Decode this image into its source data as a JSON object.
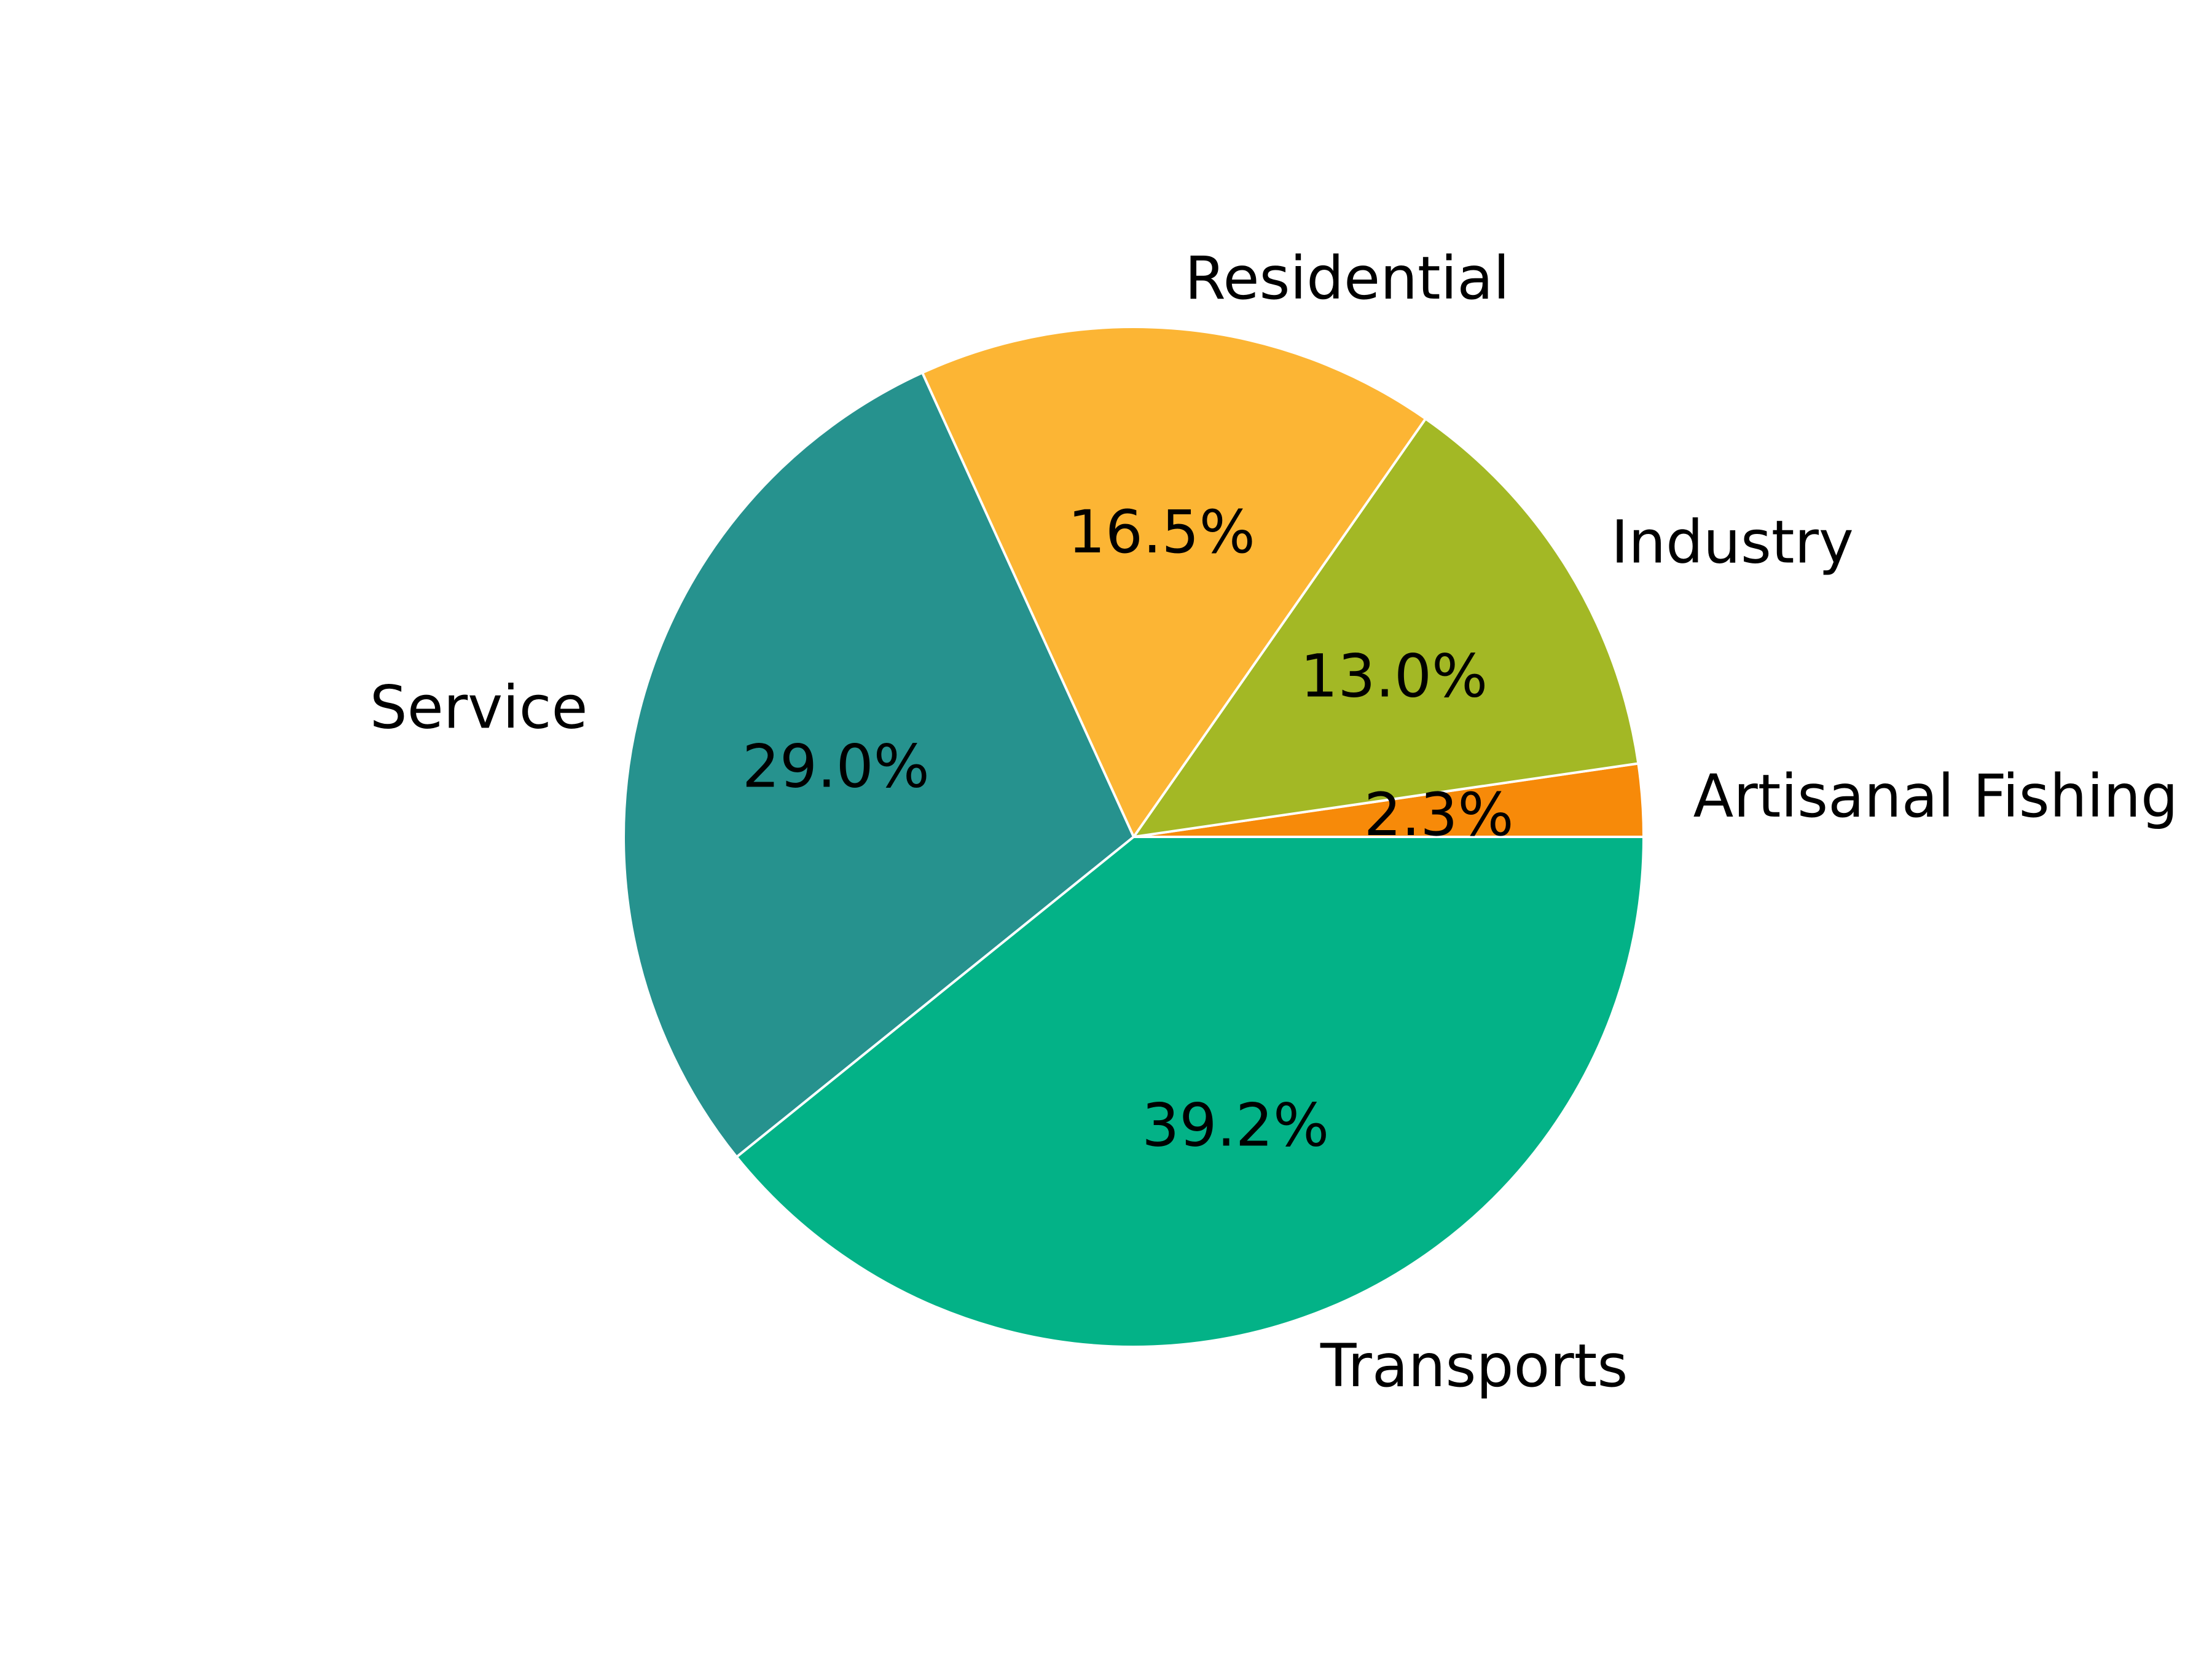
{
  "chart_data": {
    "type": "pie",
    "title": "",
    "slices": [
      {
        "label": "Artisanal Fishing",
        "value": 2.3,
        "display": "2.3%",
        "color": "#f78a09"
      },
      {
        "label": "Industry",
        "value": 13.0,
        "display": "13.0%",
        "color": "#a3b825"
      },
      {
        "label": "Residential",
        "value": 16.5,
        "display": "16.5%",
        "color": "#fcb534"
      },
      {
        "label": "Service",
        "value": 29.0,
        "display": "29.0%",
        "color": "#26928e"
      },
      {
        "label": "Transports",
        "value": 39.2,
        "display": "39.2%",
        "color": "#03b287"
      }
    ],
    "start_angle_deg": 0,
    "direction": "counterclockwise",
    "wedge_edge_color": "#ffffff"
  }
}
